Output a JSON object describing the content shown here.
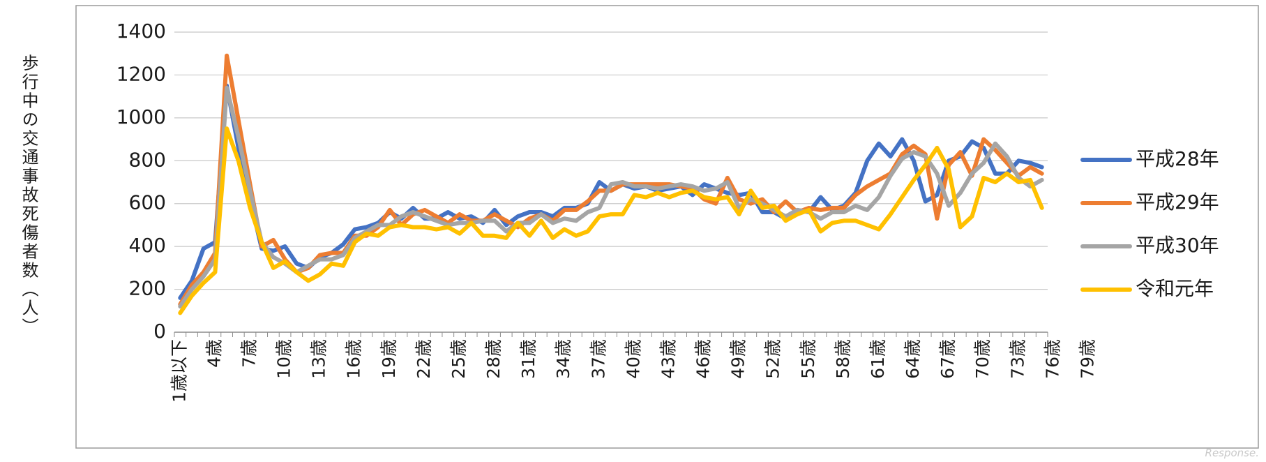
{
  "chart_data": {
    "type": "line",
    "ylabel": "歩行中の交通事故死傷者数（人）",
    "ylim": [
      0,
      1400
    ],
    "y_ticks": [
      0,
      200,
      400,
      600,
      800,
      1000,
      1200,
      1400
    ],
    "grid": true,
    "legend_position": "right",
    "x_tick_labels": [
      "1歳以下",
      "4歳",
      "7歳",
      "10歳",
      "13歳",
      "16歳",
      "19歳",
      "22歳",
      "25歳",
      "28歳",
      "31歳",
      "34歳",
      "37歳",
      "40歳",
      "43歳",
      "46歳",
      "49歳",
      "52歳",
      "55歳",
      "58歳",
      "61歳",
      "64歳",
      "67歳",
      "70歳",
      "73歳",
      "76歳",
      "79歳"
    ],
    "series": [
      {
        "name": "平成28年",
        "color": "#4472C4",
        "values": [
          160,
          240,
          390,
          420,
          1150,
          860,
          620,
          390,
          380,
          400,
          320,
          300,
          350,
          370,
          410,
          480,
          490,
          510,
          560,
          530,
          580,
          530,
          530,
          560,
          530,
          540,
          510,
          570,
          500,
          540,
          560,
          560,
          540,
          580,
          580,
          600,
          700,
          660,
          690,
          670,
          680,
          660,
          670,
          680,
          640,
          690,
          670,
          650,
          640,
          650,
          560,
          560,
          530,
          570,
          560,
          630,
          570,
          590,
          650,
          800,
          880,
          820,
          900,
          800,
          610,
          640,
          800,
          820,
          890,
          860,
          740,
          740,
          800,
          790,
          770
        ]
      },
      {
        "name": "平成29年",
        "color": "#ED7D31",
        "values": [
          130,
          220,
          280,
          370,
          1290,
          990,
          690,
          400,
          430,
          340,
          280,
          300,
          360,
          370,
          370,
          450,
          450,
          490,
          570,
          500,
          550,
          570,
          540,
          510,
          550,
          520,
          520,
          550,
          520,
          490,
          530,
          550,
          520,
          570,
          570,
          610,
          660,
          660,
          690,
          690,
          690,
          690,
          690,
          680,
          670,
          620,
          600,
          720,
          620,
          600,
          620,
          560,
          610,
          560,
          580,
          570,
          580,
          580,
          640,
          680,
          710,
          740,
          830,
          870,
          830,
          530,
          780,
          840,
          730,
          900,
          850,
          790,
          730,
          770,
          740
        ]
      },
      {
        "name": "平成30年",
        "color": "#A5A5A5",
        "values": [
          120,
          200,
          260,
          340,
          1140,
          910,
          660,
          420,
          350,
          320,
          280,
          310,
          340,
          340,
          360,
          440,
          470,
          500,
          500,
          540,
          560,
          540,
          520,
          500,
          510,
          510,
          520,
          520,
          470,
          510,
          510,
          550,
          510,
          530,
          520,
          560,
          580,
          690,
          700,
          680,
          680,
          670,
          680,
          690,
          680,
          660,
          670,
          700,
          580,
          620,
          600,
          570,
          540,
          570,
          560,
          530,
          560,
          560,
          590,
          570,
          630,
          730,
          810,
          840,
          820,
          740,
          590,
          650,
          740,
          790,
          880,
          820,
          720,
          680,
          710
        ]
      },
      {
        "name": "令和元年",
        "color": "#FFC000",
        "values": [
          90,
          170,
          230,
          280,
          950,
          800,
          580,
          420,
          300,
          330,
          280,
          240,
          270,
          320,
          310,
          420,
          460,
          450,
          490,
          500,
          490,
          490,
          480,
          490,
          460,
          510,
          450,
          450,
          440,
          510,
          450,
          520,
          440,
          480,
          450,
          470,
          540,
          550,
          550,
          640,
          630,
          650,
          630,
          650,
          660,
          630,
          620,
          630,
          550,
          660,
          580,
          590,
          520,
          550,
          570,
          470,
          510,
          520,
          520,
          500,
          480,
          550,
          630,
          710,
          780,
          860,
          760,
          490,
          540,
          720,
          700,
          740,
          700,
          710,
          580
        ]
      }
    ]
  }
}
